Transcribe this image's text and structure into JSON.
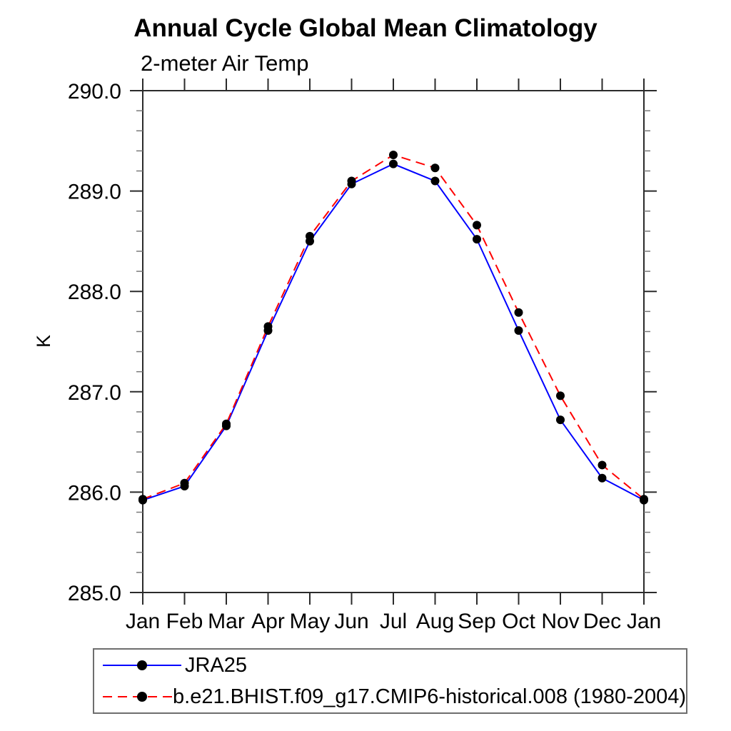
{
  "page": {
    "background": "#ffffff"
  },
  "chart_data": {
    "type": "line",
    "title": "Annual Cycle Global Mean Climatology",
    "subtitle": "2-meter Air Temp",
    "xlabel": "",
    "ylabel": "K",
    "x_labels": [
      "Jan",
      "Feb",
      "Mar",
      "Apr",
      "May",
      "Jun",
      "Jul",
      "Aug",
      "Sep",
      "Oct",
      "Nov",
      "Dec",
      "Jan"
    ],
    "ylim": [
      285.0,
      290.0
    ],
    "ytick_step": 1.0,
    "yminor_step": 0.2,
    "ytick_labels": [
      "285.0",
      "286.0",
      "287.0",
      "288.0",
      "289.0",
      "290.0"
    ],
    "grid": false,
    "legend_position": "bottom-left",
    "axis_color": "#2b2b2b",
    "minor_tick_color": "#7a7a7a",
    "marker_color": "#000000",
    "series": [
      {
        "name": "JRA25",
        "color": "#0000ff",
        "style": "solid",
        "values": [
          285.92,
          286.06,
          286.66,
          287.61,
          288.5,
          289.07,
          289.27,
          289.1,
          288.52,
          287.61,
          286.72,
          286.14,
          285.92
        ]
      },
      {
        "name": "b.e21.BHIST.f09_g17.CMIP6-historical.008 (1980-2004)",
        "color": "#ff0000",
        "style": "dashed",
        "values": [
          285.93,
          286.09,
          286.68,
          287.65,
          288.55,
          289.1,
          289.36,
          289.23,
          288.66,
          287.79,
          286.96,
          286.27,
          285.93
        ]
      }
    ]
  }
}
